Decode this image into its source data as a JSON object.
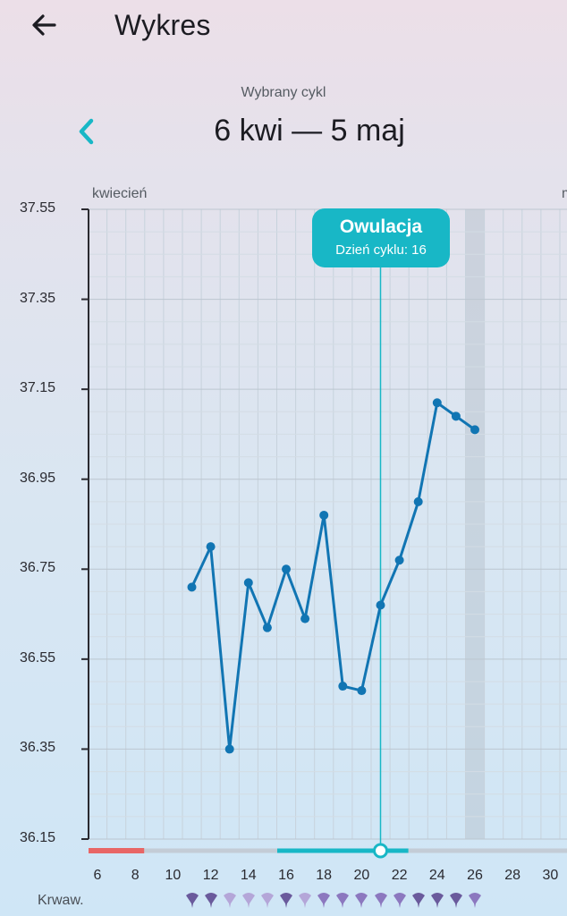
{
  "app": {
    "title": "Wykres",
    "back_icon": "arrow-left-icon",
    "cycle_caption": "Wybrany cykl",
    "cycle_range": "6 kwi — 5 maj",
    "prev_icon": "chevron-left-icon",
    "accent": "#18b7c6"
  },
  "chart_data": {
    "type": "line",
    "month_labels": [
      "kwiecień",
      "m"
    ],
    "y_ticks": [
      "37.55",
      "37.35",
      "37.15",
      "36.95",
      "36.75",
      "36.55",
      "36.35",
      "36.15"
    ],
    "x_ticks": [
      "6",
      "8",
      "10",
      "12",
      "14",
      "16",
      "18",
      "20",
      "22",
      "24",
      "26",
      "28",
      "30"
    ],
    "ylim": [
      36.15,
      37.55
    ],
    "series": [
      {
        "color": "#1175b3",
        "x": [
          "11",
          "12",
          "13",
          "14",
          "15",
          "16",
          "17",
          "18",
          "19",
          "20",
          "21",
          "22",
          "23",
          "24",
          "25",
          "26"
        ],
        "values": [
          36.71,
          36.8,
          36.35,
          36.72,
          36.62,
          36.75,
          36.64,
          36.87,
          36.49,
          36.48,
          36.67,
          36.77,
          36.9,
          37.12,
          37.09,
          37.06
        ]
      }
    ],
    "ovulation": {
      "title": "Owulacja",
      "subtitle": "Dzień cyklu: 16",
      "day": "21"
    },
    "highlight_day": "26",
    "period_days": [
      "6",
      "7",
      "8"
    ],
    "fertile_days": [
      "16",
      "17",
      "18",
      "19",
      "20",
      "21",
      "22"
    ]
  },
  "legend": {
    "label": "Krwaw.",
    "bleeding_icons": [
      "drop-dark",
      "drop-dark",
      "drop-light",
      "drop-light",
      "drop-light",
      "drop-dark",
      "drop-light",
      "drop-mid",
      "drop-mid",
      "drop-mid",
      "drop-mid",
      "drop-mid",
      "drop-dark",
      "drop-dark",
      "drop-dark",
      "drop-mid"
    ],
    "colors": {
      "dark": "#6a5a9c",
      "mid": "#8c78bf",
      "light": "#b4a6d8"
    }
  }
}
